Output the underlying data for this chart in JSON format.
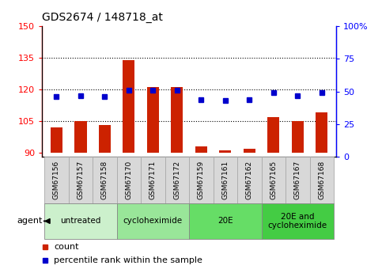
{
  "title": "GDS2674 / 148718_at",
  "samples": [
    "GSM67156",
    "GSM67157",
    "GSM67158",
    "GSM67170",
    "GSM67171",
    "GSM67172",
    "GSM67159",
    "GSM67161",
    "GSM67162",
    "GSM67165",
    "GSM67167",
    "GSM67168"
  ],
  "counts": [
    102,
    105,
    103,
    134,
    121,
    121,
    93,
    91,
    92,
    107,
    105,
    109
  ],
  "percentiles": [
    46,
    47,
    46,
    51,
    51,
    51,
    44,
    43,
    44,
    49,
    47,
    49
  ],
  "groups": [
    {
      "label": "untreated",
      "start": 0,
      "end": 3,
      "color": "#ccf0cc"
    },
    {
      "label": "cycloheximide",
      "start": 3,
      "end": 6,
      "color": "#99e699"
    },
    {
      "label": "20E",
      "start": 6,
      "end": 9,
      "color": "#66dd66"
    },
    {
      "label": "20E and\ncycloheximide",
      "start": 9,
      "end": 12,
      "color": "#44cc44"
    }
  ],
  "ylim_left": [
    88,
    150
  ],
  "ylim_right": [
    0,
    100
  ],
  "yticks_left": [
    90,
    105,
    120,
    135,
    150
  ],
  "yticks_right": [
    0,
    25,
    50,
    75,
    100
  ],
  "bar_color": "#cc2200",
  "marker_color": "#0000cc",
  "bar_bottom": 90,
  "grid_lines": [
    105,
    120,
    135
  ],
  "label_bg_color": "#d8d8d8",
  "label_edge_color": "#aaaaaa",
  "group_edge_color": "#888888"
}
